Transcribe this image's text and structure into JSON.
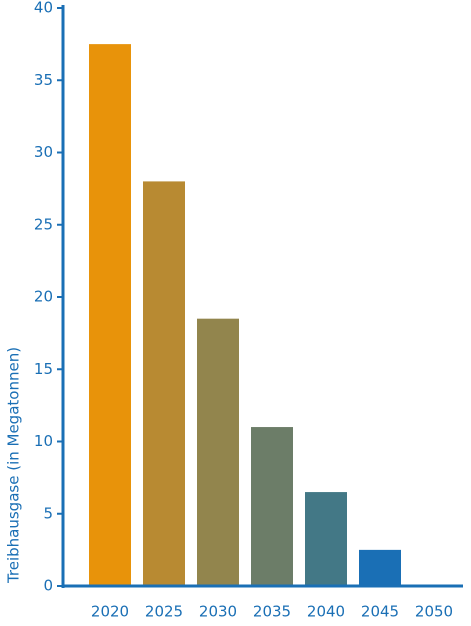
{
  "chart_data": {
    "type": "bar",
    "y_label": "Treibhausgase (in Megatonnen)",
    "categories": [
      "2020",
      "2025",
      "2030",
      "2035",
      "2040",
      "2045",
      "2050"
    ],
    "values": [
      37.5,
      28,
      18.5,
      11,
      6.5,
      2.5,
      0
    ],
    "colors": [
      "#e8930a",
      "#b88a32",
      "#92854d",
      "#6c7d68",
      "#437886",
      "#1a6fb5",
      "#0a68b8"
    ],
    "axis_color": "#1a6fb5",
    "ylim": [
      0,
      40
    ],
    "yticks": [
      0,
      5,
      10,
      15,
      20,
      25,
      30,
      35,
      40
    ],
    "grid": false
  }
}
